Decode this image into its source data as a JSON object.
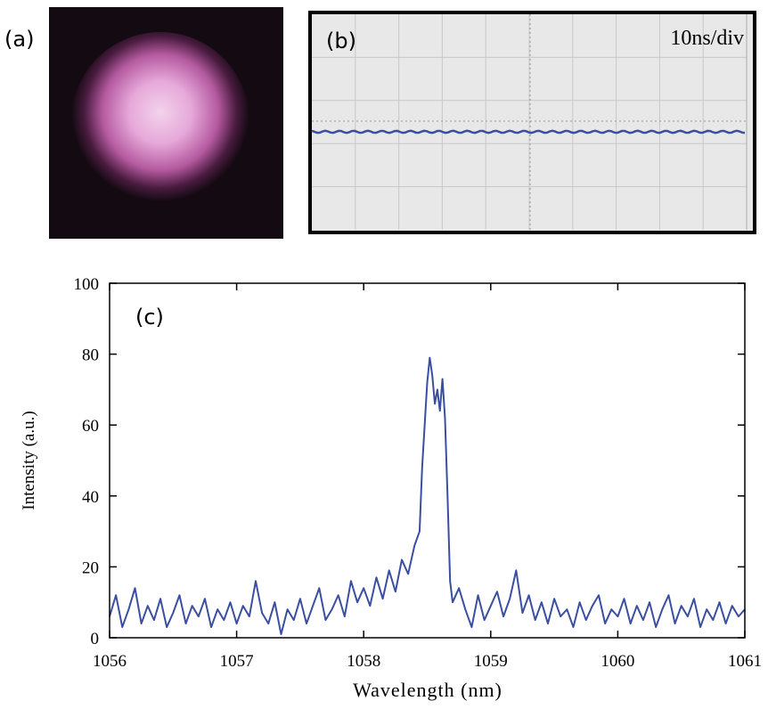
{
  "panel_a": {
    "label": "(a)"
  },
  "panel_b": {
    "label": "(b)",
    "scale": "10ns/div"
  },
  "chart_data": {
    "type": "line",
    "annotation": "(c)",
    "x_label": "Wavelength (nm)",
    "y_label": "Intensity (a.u.)",
    "color": "#3a4fa0",
    "xlim": [
      1056,
      1061
    ],
    "ylim": [
      0,
      100
    ],
    "xticks": [
      1056,
      1057,
      1058,
      1059,
      1060,
      1061
    ],
    "yticks": [
      0,
      20,
      40,
      60,
      80,
      100
    ],
    "x": [
      1056.0,
      1056.05,
      1056.1,
      1056.15,
      1056.2,
      1056.25,
      1056.3,
      1056.35,
      1056.4,
      1056.45,
      1056.5,
      1056.55,
      1056.6,
      1056.65,
      1056.7,
      1056.75,
      1056.8,
      1056.85,
      1056.9,
      1056.95,
      1057.0,
      1057.05,
      1057.1,
      1057.15,
      1057.2,
      1057.25,
      1057.3,
      1057.35,
      1057.4,
      1057.45,
      1057.5,
      1057.55,
      1057.6,
      1057.65,
      1057.7,
      1057.75,
      1057.8,
      1057.85,
      1057.9,
      1057.95,
      1058.0,
      1058.05,
      1058.1,
      1058.15,
      1058.2,
      1058.25,
      1058.3,
      1058.35,
      1058.4,
      1058.44,
      1058.46,
      1058.48,
      1058.5,
      1058.52,
      1058.54,
      1058.56,
      1058.58,
      1058.6,
      1058.62,
      1058.64,
      1058.66,
      1058.68,
      1058.7,
      1058.75,
      1058.8,
      1058.85,
      1058.9,
      1058.95,
      1059.0,
      1059.05,
      1059.1,
      1059.15,
      1059.2,
      1059.25,
      1059.3,
      1059.35,
      1059.4,
      1059.45,
      1059.5,
      1059.55,
      1059.6,
      1059.65,
      1059.7,
      1059.75,
      1059.8,
      1059.85,
      1059.9,
      1059.95,
      1060.0,
      1060.05,
      1060.1,
      1060.15,
      1060.2,
      1060.25,
      1060.3,
      1060.35,
      1060.4,
      1060.45,
      1060.5,
      1060.55,
      1060.6,
      1060.65,
      1060.7,
      1060.75,
      1060.8,
      1060.85,
      1060.9,
      1060.95,
      1061.0
    ],
    "values": [
      6,
      12,
      3,
      8,
      14,
      4,
      9,
      5,
      11,
      3,
      7,
      12,
      4,
      9,
      6,
      11,
      3,
      8,
      5,
      10,
      4,
      9,
      6,
      16,
      7,
      4,
      10,
      1,
      8,
      5,
      11,
      4,
      9,
      14,
      5,
      8,
      12,
      6,
      16,
      10,
      14,
      9,
      17,
      11,
      19,
      13,
      22,
      18,
      26,
      30,
      48,
      60,
      72,
      79,
      74,
      66,
      70,
      64,
      73,
      62,
      40,
      16,
      10,
      14,
      8,
      3,
      12,
      5,
      9,
      13,
      6,
      11,
      19,
      7,
      12,
      5,
      10,
      4,
      11,
      6,
      8,
      3,
      10,
      5,
      9,
      12,
      4,
      8,
      6,
      11,
      4,
      9,
      5,
      10,
      3,
      8,
      12,
      4,
      9,
      6,
      11,
      3,
      8,
      5,
      10,
      4,
      9,
      6,
      8
    ]
  }
}
